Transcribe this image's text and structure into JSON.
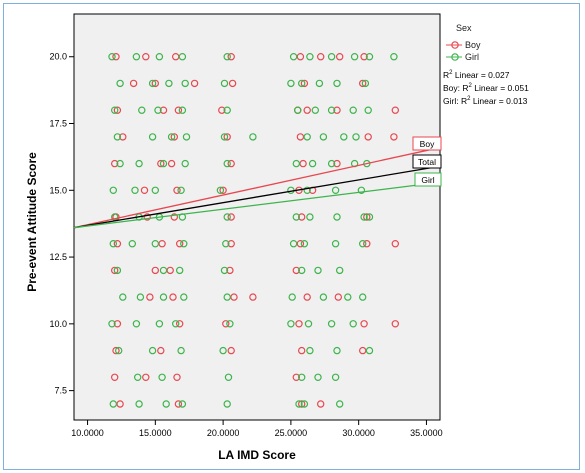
{
  "chart_data": {
    "type": "scatter",
    "title": "",
    "xlabel": "LA IMD Score",
    "ylabel": "Pre-event Attitude Score",
    "xlim": [
      9.0,
      36.0
    ],
    "ylim": [
      6.4,
      21.6
    ],
    "x_ticks": [
      "10.0000",
      "15.0000",
      "20.0000",
      "25.0000",
      "30.0000",
      "35.0000"
    ],
    "x_tick_values": [
      10,
      15,
      20,
      25,
      30,
      35
    ],
    "y_ticks": [
      "7.5",
      "10.0",
      "12.5",
      "15.0",
      "17.5",
      "20.0"
    ],
    "y_tick_values": [
      7.5,
      10,
      12.5,
      15,
      17.5,
      20
    ],
    "grid": false,
    "legend": {
      "title": "Sex",
      "placement": "top-right",
      "entries": [
        {
          "name": "Boy",
          "color": "#e8474f"
        },
        {
          "name": "Girl",
          "color": "#3cb44b"
        }
      ]
    },
    "fit_stats": {
      "total": "Linear = 0.027",
      "boy": "Boy: R",
      "boy_value": "Linear = 0.051",
      "girl": "Girl: R",
      "girl_value": "Linear = 0.013",
      "r": "R",
      "sup": "2"
    },
    "fit_lines": [
      {
        "name": "Boy",
        "color": "#e8474f",
        "x": [
          9.0,
          36.0
        ],
        "y": [
          13.6,
          16.6
        ]
      },
      {
        "name": "Total",
        "color": "#000000",
        "x": [
          9.0,
          36.0
        ],
        "y": [
          13.6,
          15.9
        ]
      },
      {
        "name": "Girl",
        "color": "#3cb44b",
        "x": [
          9.0,
          36.0
        ],
        "y": [
          13.6,
          15.3
        ]
      }
    ],
    "series": [
      {
        "name": "Boy",
        "color": "#e8474f",
        "points": [
          [
            12.1,
            20
          ],
          [
            14.3,
            20
          ],
          [
            16.5,
            20
          ],
          [
            20.6,
            20
          ],
          [
            25.7,
            20
          ],
          [
            27.2,
            20
          ],
          [
            28.6,
            20
          ],
          [
            30.4,
            20
          ],
          [
            13.4,
            19
          ],
          [
            15.0,
            19
          ],
          [
            17.9,
            19
          ],
          [
            20.7,
            19
          ],
          [
            26.0,
            19
          ],
          [
            30.3,
            19
          ],
          [
            12.2,
            18
          ],
          [
            15.6,
            18
          ],
          [
            16.7,
            18
          ],
          [
            19.9,
            18
          ],
          [
            25.5,
            18
          ],
          [
            26.2,
            18
          ],
          [
            28.4,
            18
          ],
          [
            32.7,
            18
          ],
          [
            12.6,
            17
          ],
          [
            16.4,
            17
          ],
          [
            20.3,
            17
          ],
          [
            25.7,
            17
          ],
          [
            30.7,
            17
          ],
          [
            32.6,
            17
          ],
          [
            12.0,
            16
          ],
          [
            15.4,
            16
          ],
          [
            16.2,
            16
          ],
          [
            20.6,
            16
          ],
          [
            25.9,
            16
          ],
          [
            28.4,
            16
          ],
          [
            14.2,
            15
          ],
          [
            16.6,
            15
          ],
          [
            20.0,
            15
          ],
          [
            25.6,
            15
          ],
          [
            26.6,
            15
          ],
          [
            12.1,
            14
          ],
          [
            14.4,
            14
          ],
          [
            16.4,
            14
          ],
          [
            20.6,
            14
          ],
          [
            25.8,
            14
          ],
          [
            30.6,
            14
          ],
          [
            12.2,
            13
          ],
          [
            15.5,
            13
          ],
          [
            16.8,
            13
          ],
          [
            20.6,
            13
          ],
          [
            25.7,
            13
          ],
          [
            30.6,
            13
          ],
          [
            32.7,
            13
          ],
          [
            12.0,
            12
          ],
          [
            15.0,
            12
          ],
          [
            16.1,
            12
          ],
          [
            20.5,
            12
          ],
          [
            25.4,
            12
          ],
          [
            14.6,
            11
          ],
          [
            16.3,
            11
          ],
          [
            20.8,
            11
          ],
          [
            22.2,
            11
          ],
          [
            26.2,
            11
          ],
          [
            28.5,
            11
          ],
          [
            12.2,
            10
          ],
          [
            16.8,
            10
          ],
          [
            20.2,
            10
          ],
          [
            25.6,
            10
          ],
          [
            30.4,
            10
          ],
          [
            32.7,
            10
          ],
          [
            12.1,
            9
          ],
          [
            15.4,
            9
          ],
          [
            20.6,
            9
          ],
          [
            25.8,
            9
          ],
          [
            30.3,
            9
          ],
          [
            12.0,
            8
          ],
          [
            14.3,
            8
          ],
          [
            16.6,
            8
          ],
          [
            25.4,
            8
          ],
          [
            12.4,
            7
          ],
          [
            16.7,
            7
          ],
          [
            25.8,
            7
          ],
          [
            27.2,
            7
          ]
        ]
      },
      {
        "name": "Girl",
        "color": "#3cb44b",
        "points": [
          [
            11.8,
            20
          ],
          [
            13.6,
            20
          ],
          [
            15.3,
            20
          ],
          [
            17.0,
            20
          ],
          [
            20.3,
            20
          ],
          [
            25.2,
            20
          ],
          [
            26.4,
            20
          ],
          [
            28.0,
            20
          ],
          [
            29.7,
            20
          ],
          [
            30.8,
            20
          ],
          [
            32.6,
            20
          ],
          [
            12.4,
            19
          ],
          [
            14.8,
            19
          ],
          [
            16.0,
            19
          ],
          [
            17.2,
            19
          ],
          [
            20.1,
            19
          ],
          [
            25.0,
            19
          ],
          [
            25.8,
            19
          ],
          [
            27.1,
            19
          ],
          [
            28.4,
            19
          ],
          [
            30.5,
            19
          ],
          [
            12.0,
            18
          ],
          [
            14.0,
            18
          ],
          [
            15.2,
            18
          ],
          [
            17.0,
            18
          ],
          [
            20.3,
            18
          ],
          [
            25.5,
            18
          ],
          [
            26.8,
            18
          ],
          [
            28.0,
            18
          ],
          [
            29.6,
            18
          ],
          [
            30.7,
            18
          ],
          [
            12.2,
            17
          ],
          [
            14.8,
            17
          ],
          [
            16.2,
            17
          ],
          [
            17.3,
            17
          ],
          [
            20.1,
            17
          ],
          [
            22.2,
            17
          ],
          [
            26.2,
            17
          ],
          [
            27.4,
            17
          ],
          [
            28.9,
            17
          ],
          [
            29.8,
            17
          ],
          [
            12.4,
            16
          ],
          [
            13.8,
            16
          ],
          [
            15.6,
            16
          ],
          [
            17.2,
            16
          ],
          [
            20.3,
            16
          ],
          [
            25.4,
            16
          ],
          [
            26.6,
            16
          ],
          [
            28.0,
            16
          ],
          [
            29.7,
            16
          ],
          [
            30.6,
            16
          ],
          [
            11.9,
            15
          ],
          [
            13.5,
            15
          ],
          [
            15.0,
            15
          ],
          [
            16.9,
            15
          ],
          [
            19.8,
            15
          ],
          [
            25.0,
            15
          ],
          [
            26.2,
            15
          ],
          [
            28.3,
            15
          ],
          [
            30.2,
            15
          ],
          [
            12.0,
            14
          ],
          [
            13.8,
            14
          ],
          [
            15.3,
            14
          ],
          [
            17.0,
            14
          ],
          [
            20.3,
            14
          ],
          [
            25.4,
            14
          ],
          [
            26.4,
            14
          ],
          [
            28.4,
            14
          ],
          [
            30.4,
            14
          ],
          [
            30.8,
            14
          ],
          [
            11.9,
            13
          ],
          [
            13.3,
            13
          ],
          [
            15.0,
            13
          ],
          [
            17.1,
            13
          ],
          [
            20.2,
            13
          ],
          [
            25.2,
            13
          ],
          [
            26.0,
            13
          ],
          [
            28.3,
            13
          ],
          [
            30.3,
            13
          ],
          [
            12.2,
            12
          ],
          [
            15.6,
            12
          ],
          [
            16.8,
            12
          ],
          [
            20.1,
            12
          ],
          [
            25.8,
            12
          ],
          [
            27.0,
            12
          ],
          [
            28.6,
            12
          ],
          [
            12.6,
            11
          ],
          [
            13.9,
            11
          ],
          [
            15.6,
            11
          ],
          [
            17.1,
            11
          ],
          [
            20.3,
            11
          ],
          [
            25.1,
            11
          ],
          [
            27.4,
            11
          ],
          [
            29.2,
            11
          ],
          [
            30.3,
            11
          ],
          [
            11.8,
            10
          ],
          [
            13.6,
            10
          ],
          [
            15.3,
            10
          ],
          [
            16.5,
            10
          ],
          [
            20.5,
            10
          ],
          [
            25.0,
            10
          ],
          [
            26.3,
            10
          ],
          [
            28.0,
            10
          ],
          [
            29.6,
            10
          ],
          [
            12.3,
            9
          ],
          [
            14.8,
            9
          ],
          [
            16.9,
            9
          ],
          [
            20.0,
            9
          ],
          [
            26.4,
            9
          ],
          [
            28.4,
            9
          ],
          [
            30.8,
            9
          ],
          [
            13.7,
            8
          ],
          [
            15.5,
            8
          ],
          [
            20.4,
            8
          ],
          [
            25.8,
            8
          ],
          [
            27.0,
            8
          ],
          [
            28.3,
            8
          ],
          [
            11.9,
            7
          ],
          [
            13.8,
            7
          ],
          [
            15.8,
            7
          ],
          [
            17.0,
            7
          ],
          [
            20.3,
            7
          ],
          [
            25.6,
            7
          ],
          [
            26.0,
            7
          ],
          [
            28.6,
            7
          ]
        ]
      }
    ]
  }
}
